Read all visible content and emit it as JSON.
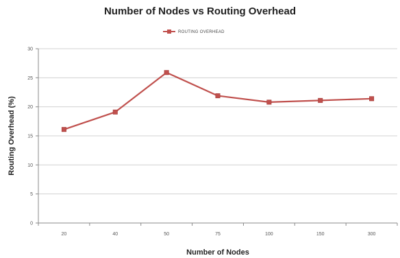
{
  "chart_data": {
    "type": "line",
    "title": "Number of Nodes vs Routing Overhead",
    "xlabel": "Number of Nodes",
    "ylabel": "Routing Overhead (%)",
    "categories": [
      "20",
      "40",
      "50",
      "75",
      "100",
      "150",
      "300"
    ],
    "ylim": [
      0,
      30
    ],
    "yticks": [
      "0",
      "5",
      "10",
      "15",
      "20",
      "25",
      "30"
    ],
    "grid": true,
    "legend_position": "top-center",
    "series": [
      {
        "name": "ROUTING OVERHEAD",
        "color": "#c0504d",
        "marker": "square",
        "values": [
          16.1,
          19.1,
          25.9,
          21.9,
          20.8,
          21.1,
          21.4
        ]
      }
    ]
  }
}
